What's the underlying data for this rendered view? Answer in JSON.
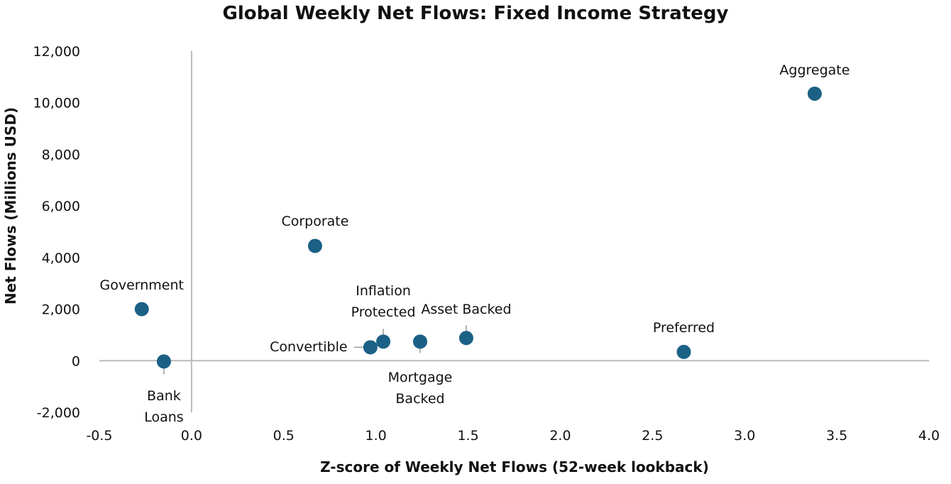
{
  "chart_data": {
    "type": "scatter",
    "title": "Global Weekly Net Flows: Fixed Income Strategy",
    "x_label": "Z-score of Weekly Net Flows (52-week lookback)",
    "y_label": "Net Flows (Millions USD)",
    "color": "#1b6185",
    "labels": [
      "Aggregate",
      "Corporate",
      "Government",
      "Bank Loans",
      "Convertible",
      "Inflation Protected",
      "Mortgage Backed",
      "Asset Backed",
      "Preferred"
    ],
    "x": [
      3.38,
      0.67,
      -0.27,
      -0.15,
      0.97,
      1.04,
      1.24,
      1.49,
      2.67
    ],
    "values": [
      10350,
      4450,
      2000,
      -30,
      520,
      740,
      740,
      880,
      340
    ],
    "xlim": [
      -0.5,
      4.0
    ],
    "ylim": [
      -2000,
      12000
    ],
    "xticks": [
      -0.5,
      {
        "value": 0,
        "label": "0.0"
      },
      0.5,
      {
        "value": 1,
        "label": "1.0"
      },
      1.5,
      {
        "value": 2,
        "label": "2.0"
      },
      2.5,
      {
        "value": 3,
        "label": "3.0"
      },
      3.5,
      {
        "value": 4,
        "label": "4.0"
      }
    ],
    "yticks": [
      {
        "value": -2000,
        "label": "-2,000"
      },
      0,
      {
        "value": 2000,
        "label": "2,000"
      },
      {
        "value": 4000,
        "label": "4,000"
      },
      {
        "value": 6000,
        "label": "6,000"
      },
      {
        "value": 8000,
        "label": "8,000"
      },
      {
        "value": 10000,
        "label": "10,000"
      },
      {
        "value": 12000,
        "label": "12,000"
      }
    ],
    "grid": false
  }
}
